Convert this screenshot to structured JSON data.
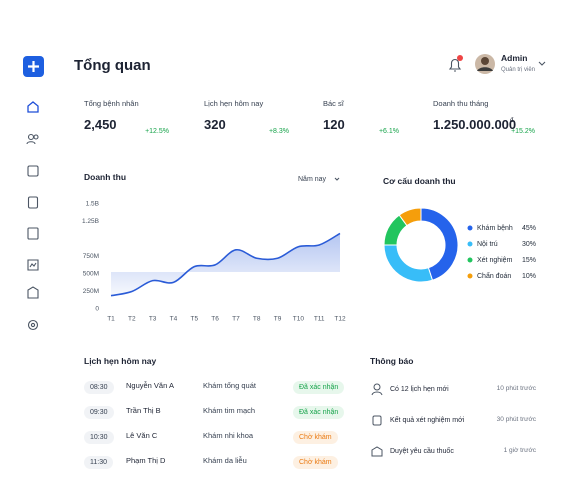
{
  "header": {
    "title": "Tổng quan",
    "user": {
      "name": "Admin",
      "role": "Quản trị viên"
    }
  },
  "stats": [
    {
      "label": "Tổng bệnh nhân",
      "value": "2,450",
      "change": "+12.5%"
    },
    {
      "label": "Lịch hẹn hôm nay",
      "value": "320",
      "change": "+8.3%"
    },
    {
      "label": "Bác sĩ",
      "value": "120",
      "change": "+6.1%"
    },
    {
      "label": "Doanh thu tháng",
      "value": "1.250.000.000",
      "currency": "đ",
      "change": "+15.2%"
    }
  ],
  "revenue_chart": {
    "type": "line",
    "title": "Doanh thu",
    "filter": "Năm nay",
    "x": [
      "T1",
      "T2",
      "T3",
      "T4",
      "T5",
      "T6",
      "T7",
      "T8",
      "T9",
      "T10",
      "T11",
      "T12"
    ],
    "values": [
      190,
      250,
      405,
      380,
      605,
      630,
      845,
      725,
      725,
      890,
      915,
      1080
    ],
    "color": "#2a5bd7",
    "ylim": [
      0,
      1500
    ],
    "yticks": [
      0,
      {
        "value": 250,
        "label": "250M"
      },
      {
        "value": 500,
        "label": "500M"
      },
      {
        "value": 750,
        "label": "750M"
      },
      {
        "value": 1250,
        "label": "1.25B"
      },
      {
        "value": 1500,
        "label": "1.5B"
      }
    ]
  },
  "revenue_mix": {
    "type": "pie",
    "title": "Cơ cấu doanh thu",
    "categories": [
      "Khám bệnh",
      "Nội trú",
      "Xét nghiệm",
      "Chẩn đoán"
    ],
    "values": [
      45,
      30,
      15,
      10
    ],
    "value_labels": [
      "45%",
      "30%",
      "15%",
      "10%"
    ],
    "colors": [
      "#2563eb",
      "#38bdf8",
      "#22c55e",
      "#f59e0b"
    ]
  },
  "appointments": {
    "title": "Lịch hẹn hôm nay",
    "rows": [
      {
        "time": "08:30",
        "name": "Nguyễn Văn A",
        "service": "Khám tổng quát",
        "status": "Đã xác nhận"
      },
      {
        "time": "09:30",
        "name": "Trần Thị B",
        "service": "Khám tim mạch",
        "status": "Đã xác nhận"
      },
      {
        "time": "10:30",
        "name": "Lê Văn C",
        "service": "Khám nhi khoa",
        "status": "Chờ khám"
      },
      {
        "time": "11:30",
        "name": "Phạm Thị D",
        "service": "Khám da liễu",
        "status": "Chờ khám"
      }
    ]
  },
  "notifications": {
    "title": "Thông báo",
    "items": [
      {
        "text": "Có 12 lịch hẹn mới",
        "time": "10 phút trước"
      },
      {
        "text": "Kết quả xét nghiệm mới",
        "time": "30 phút trước"
      },
      {
        "text": "Duyệt yêu cầu thuốc",
        "time": "1 giờ trước"
      }
    ]
  }
}
